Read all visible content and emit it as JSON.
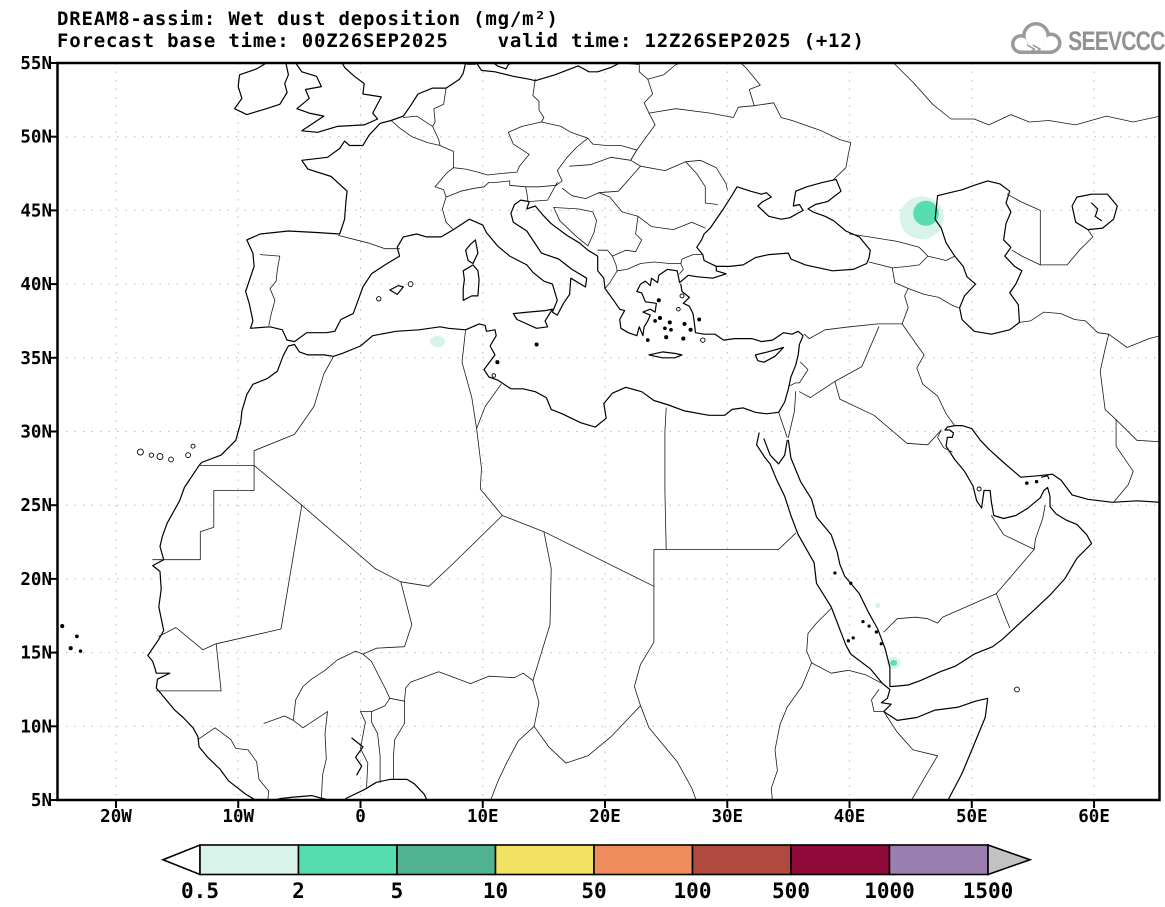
{
  "header": {
    "title_line1": "DREAM8-assim: Wet dust deposition (mg/m²)",
    "title_line2": "Forecast base time: 00Z26SEP2025    valid time: 12Z26SEP2025 (+12)"
  },
  "logo": {
    "text": "SEEVCCC"
  },
  "axes": {
    "lat_labels": [
      "55N",
      "50N",
      "45N",
      "40N",
      "35N",
      "30N",
      "25N",
      "20N",
      "15N",
      "10N",
      "5N"
    ],
    "lat_values": [
      55,
      50,
      45,
      40,
      35,
      30,
      25,
      20,
      15,
      10,
      5
    ],
    "lon_labels": [
      "20W",
      "10W",
      "0",
      "10E",
      "20E",
      "30E",
      "40E",
      "50E",
      "60E"
    ],
    "lon_values": [
      -20,
      -10,
      0,
      10,
      20,
      30,
      40,
      50,
      60
    ]
  },
  "chart_data": {
    "type": "heatmap",
    "title": "DREAM8-assim: Wet dust deposition (mg/m²)",
    "model": "DREAM8-assim",
    "variable": "Wet dust deposition",
    "units": "mg/m²",
    "forecast_base_time": "00Z26SEP2025",
    "valid_time": "12Z26SEP2025",
    "forecast_hour": "+12",
    "map_extent": {
      "lon_min": -25,
      "lon_max": 65,
      "lat_min": 5,
      "lat_max": 55
    },
    "grid": {
      "lat_step": 5,
      "lon_step": 10,
      "style": "dotted"
    },
    "legend_position": "bottom",
    "scale": {
      "levels": [
        0.5,
        2,
        5,
        10,
        50,
        100,
        500,
        1000,
        1500
      ],
      "colors": [
        "#d7f3ea",
        "#58ddb1",
        "#52b392",
        "#f2e264",
        "#ef8d5c",
        "#b04a3e",
        "#8f0a38",
        "#9b7fb0"
      ],
      "under_color": "#ffffff",
      "over_color": "#c2c2c2"
    },
    "colorbar_labels": [
      "0.5",
      "2",
      "5",
      "10",
      "50",
      "100",
      "500",
      "1000",
      "1500"
    ],
    "deposition_spots": [
      {
        "lon": 45.9,
        "lat": 44.5,
        "rx_deg": 1.8,
        "ry_deg": 1.45,
        "level_min": 0.5
      },
      {
        "lon": 46.25,
        "lat": 44.8,
        "rx_deg": 1.05,
        "ry_deg": 0.85,
        "level_min": 2
      },
      {
        "lon": 6.3,
        "lat": 36.1,
        "rx_deg": 0.62,
        "ry_deg": 0.38,
        "level_min": 0.5
      },
      {
        "lon": 42.3,
        "lat": 18.2,
        "rx_deg": 0.22,
        "ry_deg": 0.18,
        "level_min": 0.5
      },
      {
        "lon": 43.6,
        "lat": 14.3,
        "rx_deg": 0.55,
        "ry_deg": 0.42,
        "level_min": 0.5
      },
      {
        "lon": 43.6,
        "lat": 14.3,
        "rx_deg": 0.28,
        "ry_deg": 0.2,
        "level_min": 2
      }
    ]
  }
}
